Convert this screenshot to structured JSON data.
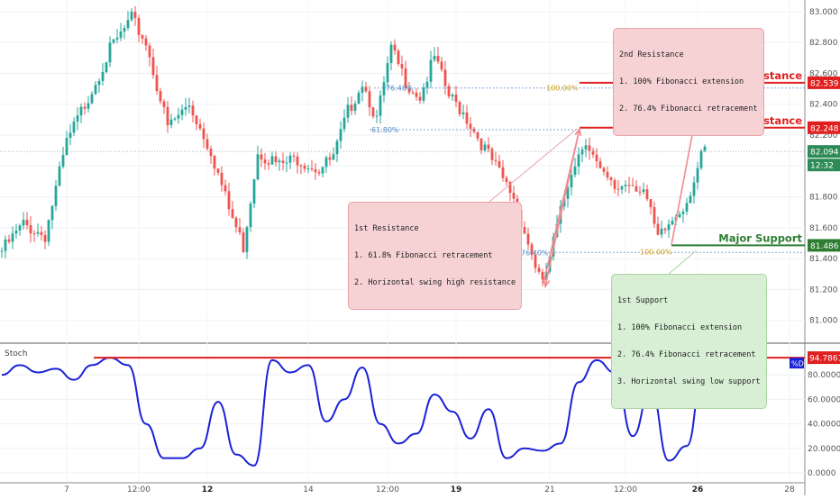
{
  "notes": {
    "second_resistance": [
      "2nd Resistance",
      "1. 100% Fibonacci extension",
      "2. 76.4% Fibonacci retracement"
    ],
    "first_resistance": [
      "1st Resistance",
      "1. 61.8% Fibonacci retracement",
      "2. Horizontal swing high resistance"
    ],
    "first_support": [
      "1st Support",
      "1. 100% Fibonacci extension",
      "2. 76.4% Fibonacci retracement",
      "3. Horizontal swing low support"
    ]
  },
  "chart_data": [
    {
      "type": "candlestick",
      "title": "",
      "y_ticks": [
        "83.000",
        "82.800",
        "82.600",
        "82.400",
        "82.200",
        "82.000",
        "81.800",
        "81.600",
        "81.400",
        "81.200",
        "81.000"
      ],
      "ylim": [
        80.87,
        83.04
      ],
      "x_ticks": [
        "7",
        "12:00",
        "12",
        "14",
        "12:00",
        "19",
        "21",
        "12:00",
        "26",
        "28"
      ],
      "bar_count": 196,
      "close_path": [
        {
          "bar": 0,
          "price": 81.45
        },
        {
          "bar": 6,
          "price": 81.62
        },
        {
          "bar": 12,
          "price": 81.55
        },
        {
          "bar": 18,
          "price": 82.15
        },
        {
          "bar": 24,
          "price": 82.45
        },
        {
          "bar": 30,
          "price": 82.75
        },
        {
          "bar": 36,
          "price": 82.95
        },
        {
          "bar": 40,
          "price": 82.8
        },
        {
          "bar": 46,
          "price": 82.25
        },
        {
          "bar": 52,
          "price": 82.4
        },
        {
          "bar": 58,
          "price": 82.1
        },
        {
          "bar": 63,
          "price": 81.72
        },
        {
          "bar": 67,
          "price": 81.48
        },
        {
          "bar": 71,
          "price": 82.1
        },
        {
          "bar": 77,
          "price": 82.0
        },
        {
          "bar": 82,
          "price": 82.05
        },
        {
          "bar": 88,
          "price": 81.98
        },
        {
          "bar": 92,
          "price": 82.05
        },
        {
          "bar": 96,
          "price": 82.35
        },
        {
          "bar": 100,
          "price": 82.55
        },
        {
          "bar": 104,
          "price": 82.3
        },
        {
          "bar": 108,
          "price": 82.75
        },
        {
          "bar": 112,
          "price": 82.55
        },
        {
          "bar": 116,
          "price": 82.45
        },
        {
          "bar": 120,
          "price": 82.7
        },
        {
          "bar": 124,
          "price": 82.45
        },
        {
          "bar": 128,
          "price": 82.35
        },
        {
          "bar": 133,
          "price": 82.15
        },
        {
          "bar": 138,
          "price": 81.95
        },
        {
          "bar": 142,
          "price": 81.8
        },
        {
          "bar": 146,
          "price": 81.5
        },
        {
          "bar": 150,
          "price": 81.22
        },
        {
          "bar": 154,
          "price": 81.6
        },
        {
          "bar": 158,
          "price": 81.98
        },
        {
          "bar": 162,
          "price": 82.18
        },
        {
          "bar": 166,
          "price": 81.95
        },
        {
          "bar": 170,
          "price": 81.85
        },
        {
          "bar": 174,
          "price": 81.9
        },
        {
          "bar": 178,
          "price": 81.85
        },
        {
          "bar": 182,
          "price": 81.52
        },
        {
          "bar": 186,
          "price": 81.65
        },
        {
          "bar": 190,
          "price": 81.78
        },
        {
          "bar": 194,
          "price": 82.05
        },
        {
          "bar": 195,
          "price": 82.094
        }
      ],
      "price_labels": [
        {
          "text": "82.539",
          "price": 82.539,
          "color": "#e02020"
        },
        {
          "text": "82.248",
          "price": 82.248,
          "color": "#e02020"
        },
        {
          "text": "82.094",
          "price": 82.094,
          "color": "#2e8b57"
        },
        {
          "text": "12:32",
          "price": 82.0,
          "color": "#2e8b57"
        },
        {
          "text": "81.486",
          "price": 81.486,
          "color": "#2e7d32"
        }
      ],
      "levels": [
        {
          "label": "2nd Resistance",
          "price": 82.539,
          "color": "#e02020"
        },
        {
          "label": "1st Resistance",
          "price": 82.248,
          "color": "#e02020"
        },
        {
          "label": "Major Support",
          "price": 81.486,
          "color": "#2e7d32"
        }
      ],
      "fib_labels": [
        {
          "text": "76.40%",
          "price": 82.505,
          "color": "#5b8cc8"
        },
        {
          "text": "100.00%",
          "price": 82.505,
          "color": "#d4a017"
        },
        {
          "text": "61.80%",
          "price": 82.235,
          "color": "#5b8cc8"
        },
        {
          "text": "76.40%",
          "price": 81.44,
          "color": "#5b8cc8"
        },
        {
          "text": "100.00%",
          "price": 81.445,
          "color": "#d4a017"
        }
      ],
      "colors": {
        "up": "#26a69a",
        "down": "#ef5350",
        "resistance": "#e02020",
        "support": "#2e7d32",
        "arrow": "#f08a93"
      }
    },
    {
      "type": "line",
      "title": "Stoch",
      "legend": "%D",
      "ylim": [
        0,
        100
      ],
      "y_ticks": [
        "80.0000",
        "60.0000",
        "40.0000",
        "20.0000",
        "0.0000"
      ],
      "marker_label": "94.7861",
      "marker_value": 94.7861,
      "x": [
        0,
        5,
        10,
        15,
        20,
        25,
        30,
        35,
        40,
        45,
        50,
        55,
        60,
        65,
        70,
        75,
        80,
        85,
        90,
        95,
        100,
        105,
        110,
        115,
        120,
        125,
        130,
        135,
        140,
        145,
        150,
        155,
        160,
        165,
        170,
        175,
        180,
        185,
        190,
        195
      ],
      "values": [
        80,
        88,
        82,
        85,
        76,
        88,
        94,
        88,
        40,
        12,
        12,
        20,
        58,
        15,
        6,
        92,
        82,
        88,
        42,
        60,
        86,
        40,
        24,
        32,
        64,
        50,
        28,
        52,
        12,
        20,
        18,
        24,
        74,
        92,
        82,
        30,
        68,
        10,
        22,
        94.8
      ],
      "color": "#1a22d6"
    }
  ]
}
